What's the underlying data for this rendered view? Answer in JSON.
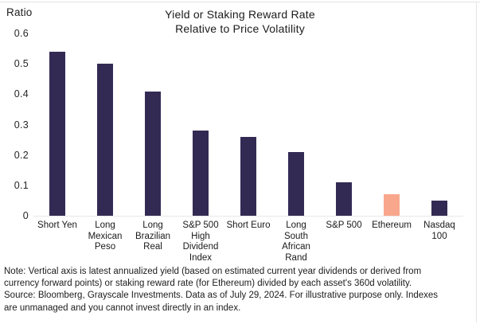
{
  "chart_data": {
    "type": "bar",
    "title": "Yield or Staking Reward Rate Relative to Price Volatility",
    "title_lines": [
      "Yield or Staking Reward Rate",
      "Relative to Price Volatility"
    ],
    "ylabel": "Ratio",
    "xlabel": "",
    "ylim": [
      0,
      0.6
    ],
    "grid": false,
    "legend_position": "none",
    "ytick_labels": [
      "0.6",
      "0.5",
      "0.4",
      "0.3",
      "0.2",
      "0.1",
      "0"
    ],
    "ytick_values": [
      0.6,
      0.5,
      0.4,
      0.3,
      0.2,
      0.1,
      0
    ],
    "categories": [
      "Short Yen",
      "Long Mexican Peso",
      "Long Brazilian Real",
      "S&P 500 High Dividend Index",
      "Short Euro",
      "Long South African Rand",
      "S&P 500",
      "Ethereum",
      "Nasdaq 100"
    ],
    "category_label_lines": [
      [
        "Short Yen"
      ],
      [
        "Long",
        "Mexican",
        "Peso"
      ],
      [
        "Long",
        "Brazilian",
        "Real"
      ],
      [
        "S&P 500",
        "High",
        "Dividend",
        "Index"
      ],
      [
        "Short Euro"
      ],
      [
        "Long",
        "South",
        "African",
        "Rand"
      ],
      [
        "S&P 500"
      ],
      [
        "Ethereum"
      ],
      [
        "Nasdaq",
        "100"
      ]
    ],
    "values": [
      0.54,
      0.5,
      0.41,
      0.28,
      0.26,
      0.21,
      0.11,
      0.07,
      0.05
    ],
    "highlight_category": "Ethereum",
    "colors": {
      "bar_default": "#332A54",
      "bar_highlight": "#F9A78C",
      "baseline": "#e7e7e7",
      "text": "#1b1b1b"
    }
  },
  "footnote": {
    "lines": [
      "Note: Vertical axis is latest annualized yield (based on estimated current year dividends or derived from",
      "currency forward points) or staking reward rate (for Ethereum) divided by each asset's 360d volatility.",
      "Source: Bloomberg, Grayscale Investments. Data as of July 29, 2024. For illustrative purpose only. Indexes",
      "are unmanaged and you cannot invest directly in an index."
    ]
  }
}
